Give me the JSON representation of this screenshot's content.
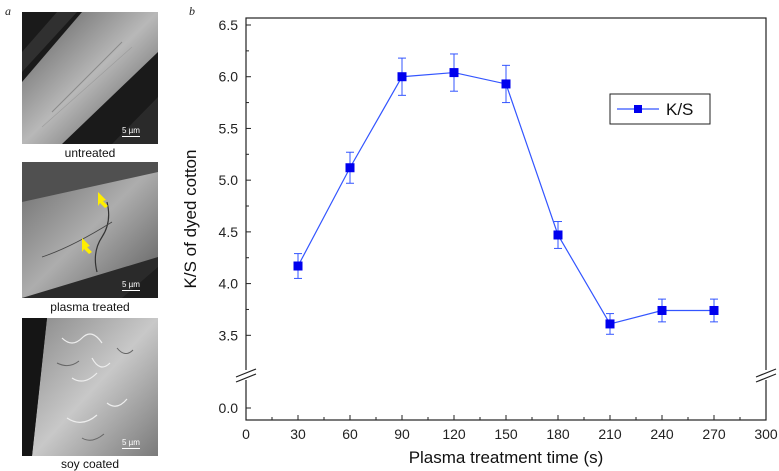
{
  "panel_labels": {
    "a": "a",
    "b": "b"
  },
  "sem_images": [
    {
      "caption": "untreated",
      "scale_bar": "5 µm"
    },
    {
      "caption": "plasma treated",
      "scale_bar": "5 µm"
    },
    {
      "caption": "soy coated",
      "scale_bar": "5 µm"
    }
  ],
  "colors": {
    "series": "#0000ee",
    "line": "#3355ff",
    "marker_arrow": "#ffee00"
  },
  "chart_data": {
    "type": "line",
    "xlabel": "Plasma treatment time (s)",
    "ylabel": "K/S of dyed cotton",
    "xlim": [
      0,
      300
    ],
    "x_ticks": [
      "0",
      "30",
      "60",
      "90",
      "120",
      "150",
      "180",
      "210",
      "240",
      "270",
      "300"
    ],
    "y_ticks_upper": [
      "3.5",
      "4.0",
      "4.5",
      "5.0",
      "5.5",
      "6.0",
      "6.5"
    ],
    "y_ticks_lower": [
      "0.0"
    ],
    "y_break": [
      0.0,
      3.3
    ],
    "legend": {
      "position": "top-right",
      "entries": [
        "K/S"
      ]
    },
    "series": [
      {
        "name": "K/S",
        "x": [
          30,
          60,
          90,
          120,
          150,
          180,
          210,
          240,
          270
        ],
        "y": [
          4.17,
          5.12,
          6.0,
          6.04,
          5.93,
          4.47,
          3.61,
          3.74,
          3.74
        ],
        "error": [
          0.12,
          0.15,
          0.18,
          0.18,
          0.18,
          0.13,
          0.1,
          0.11,
          0.11
        ]
      }
    ]
  }
}
